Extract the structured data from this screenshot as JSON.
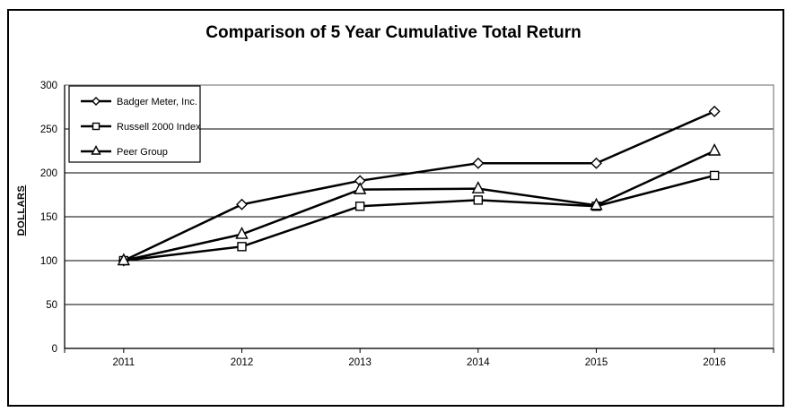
{
  "title": "Comparison of 5 Year Cumulative Total Return",
  "chart_data": {
    "type": "line",
    "title": "Comparison of 5 Year Cumulative Total Return",
    "categories": [
      "2011",
      "2012",
      "2013",
      "2014",
      "2015",
      "2016"
    ],
    "series": [
      {
        "name": "Badger Meter, Inc.",
        "marker": "diamond",
        "values": [
          100,
          164,
          191,
          211,
          211,
          270
        ]
      },
      {
        "name": "Russell 2000 Index",
        "marker": "square",
        "values": [
          100,
          116,
          162,
          169,
          162,
          197
        ]
      },
      {
        "name": "Peer Group",
        "marker": "triangle",
        "values": [
          100,
          130,
          181,
          182,
          163,
          225
        ]
      }
    ],
    "xlabel": "",
    "ylabel": "DOLLARS",
    "ylim": [
      0,
      300
    ],
    "y_ticks": [
      0,
      50,
      100,
      150,
      200,
      250,
      300
    ],
    "grid": "horizontal",
    "legend_position": "top-left",
    "colors": {
      "line": "#000000",
      "marker_fill": "#ffffff",
      "grid": "#000000",
      "frame": "#808080",
      "axis": "#000000",
      "border": "#000000",
      "background": "#ffffff",
      "text": "#000000"
    }
  }
}
